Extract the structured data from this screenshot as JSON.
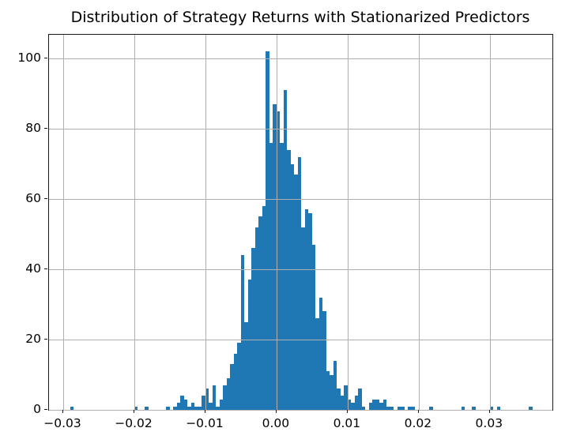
{
  "figure": {
    "background_color": "#ffffff"
  },
  "chart_data": {
    "type": "bar",
    "subtype": "histogram",
    "title": "Distribution of Strategy Returns with Stationarized Predictors",
    "xlabel": "",
    "ylabel": "",
    "legend": null,
    "grid": true,
    "grid_color": "#b0b0b0",
    "bar_color": "#1f77b4",
    "spine_color": "#1a1a1a",
    "text_color": "#000000",
    "xlim": [
      -0.032,
      0.0388
    ],
    "ylim": [
      0,
      106.74
    ],
    "bin_width": 0.0005,
    "xticks": [
      {
        "value": -0.03,
        "label": "−0.03"
      },
      {
        "value": -0.02,
        "label": "−0.02"
      },
      {
        "value": -0.01,
        "label": "−0.01"
      },
      {
        "value": 0.0,
        "label": "0.00"
      },
      {
        "value": 0.01,
        "label": "0.01"
      },
      {
        "value": 0.02,
        "label": "0.02"
      },
      {
        "value": 0.03,
        "label": "0.03"
      }
    ],
    "yticks": [
      {
        "value": 0,
        "label": "0"
      },
      {
        "value": 20,
        "label": "20"
      },
      {
        "value": 40,
        "label": "40"
      },
      {
        "value": 60,
        "label": "60"
      },
      {
        "value": 80,
        "label": "80"
      },
      {
        "value": 100,
        "label": "100"
      }
    ],
    "bins": [
      [
        -0.029,
        1
      ],
      [
        -0.02,
        1
      ],
      [
        -0.0185,
        1
      ],
      [
        -0.0155,
        1
      ],
      [
        -0.0145,
        1
      ],
      [
        -0.014,
        2
      ],
      [
        -0.0135,
        4
      ],
      [
        -0.013,
        3
      ],
      [
        -0.0125,
        1
      ],
      [
        -0.012,
        2
      ],
      [
        -0.0115,
        1
      ],
      [
        -0.011,
        1
      ],
      [
        -0.0105,
        4
      ],
      [
        -0.01,
        6
      ],
      [
        -0.0095,
        2
      ],
      [
        -0.009,
        7
      ],
      [
        -0.0085,
        1
      ],
      [
        -0.008,
        3
      ],
      [
        -0.0075,
        7
      ],
      [
        -0.007,
        9
      ],
      [
        -0.0065,
        13
      ],
      [
        -0.006,
        16
      ],
      [
        -0.0055,
        19
      ],
      [
        -0.005,
        44
      ],
      [
        -0.0045,
        25
      ],
      [
        -0.004,
        37
      ],
      [
        -0.0035,
        46
      ],
      [
        -0.003,
        52
      ],
      [
        -0.0025,
        55
      ],
      [
        -0.002,
        58
      ],
      [
        -0.0015,
        102
      ],
      [
        -0.001,
        76
      ],
      [
        -0.0005,
        87
      ],
      [
        0.0,
        85
      ],
      [
        0.0005,
        76
      ],
      [
        0.001,
        91
      ],
      [
        0.0015,
        74
      ],
      [
        0.002,
        70
      ],
      [
        0.0025,
        67
      ],
      [
        0.003,
        72
      ],
      [
        0.0035,
        52
      ],
      [
        0.004,
        57
      ],
      [
        0.0045,
        56
      ],
      [
        0.005,
        47
      ],
      [
        0.0055,
        26
      ],
      [
        0.006,
        32
      ],
      [
        0.0065,
        28
      ],
      [
        0.007,
        11
      ],
      [
        0.0075,
        10
      ],
      [
        0.008,
        14
      ],
      [
        0.0085,
        6
      ],
      [
        0.009,
        4
      ],
      [
        0.0095,
        7
      ],
      [
        0.01,
        3
      ],
      [
        0.0105,
        2
      ],
      [
        0.011,
        4
      ],
      [
        0.0115,
        6
      ],
      [
        0.012,
        1
      ],
      [
        0.013,
        2
      ],
      [
        0.0135,
        3
      ],
      [
        0.014,
        3
      ],
      [
        0.0145,
        2
      ],
      [
        0.015,
        3
      ],
      [
        0.0155,
        1
      ],
      [
        0.016,
        1
      ],
      [
        0.017,
        1
      ],
      [
        0.0175,
        1
      ],
      [
        0.0185,
        1
      ],
      [
        0.019,
        1
      ],
      [
        0.0215,
        1
      ],
      [
        0.026,
        1
      ],
      [
        0.0275,
        1
      ],
      [
        0.03,
        1
      ],
      [
        0.031,
        1
      ],
      [
        0.0355,
        1
      ]
    ]
  }
}
